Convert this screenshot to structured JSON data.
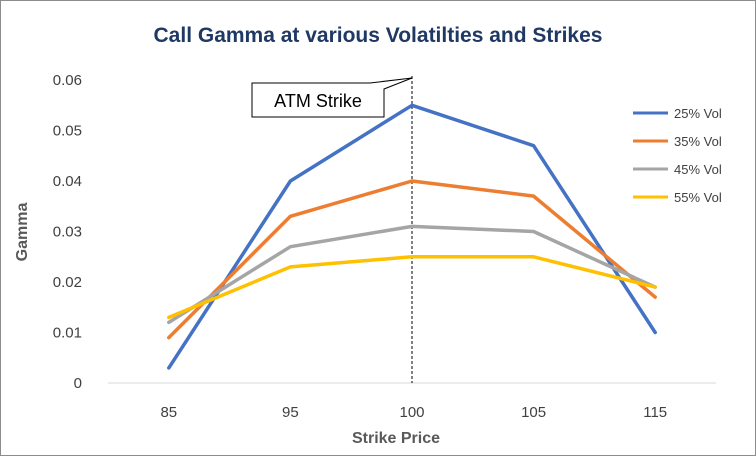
{
  "chart_data": {
    "type": "line",
    "title": "Call Gamma at various Volatilties and Strikes",
    "xlabel": "Strike Price",
    "ylabel": "Gamma",
    "categories": [
      "85",
      "95",
      "100",
      "105",
      "115"
    ],
    "ylim": [
      0,
      0.06
    ],
    "yticks": [
      "0",
      "0.01",
      "0.02",
      "0.03",
      "0.04",
      "0.05",
      "0.06"
    ],
    "grid": false,
    "legend_position": "right",
    "series": [
      {
        "name": "25% Vol",
        "color": "#4472c4",
        "values": [
          0.003,
          0.04,
          0.055,
          0.047,
          0.01
        ]
      },
      {
        "name": "35% Vol",
        "color": "#ed7d31",
        "values": [
          0.009,
          0.033,
          0.04,
          0.037,
          0.017
        ]
      },
      {
        "name": "45% Vol",
        "color": "#a5a5a5",
        "values": [
          0.012,
          0.027,
          0.031,
          0.03,
          0.019
        ]
      },
      {
        "name": "55% Vol",
        "color": "#ffc000",
        "values": [
          0.013,
          0.023,
          0.025,
          0.025,
          0.019
        ]
      }
    ],
    "annotation": {
      "text": "ATM Strike",
      "category": "100"
    }
  }
}
